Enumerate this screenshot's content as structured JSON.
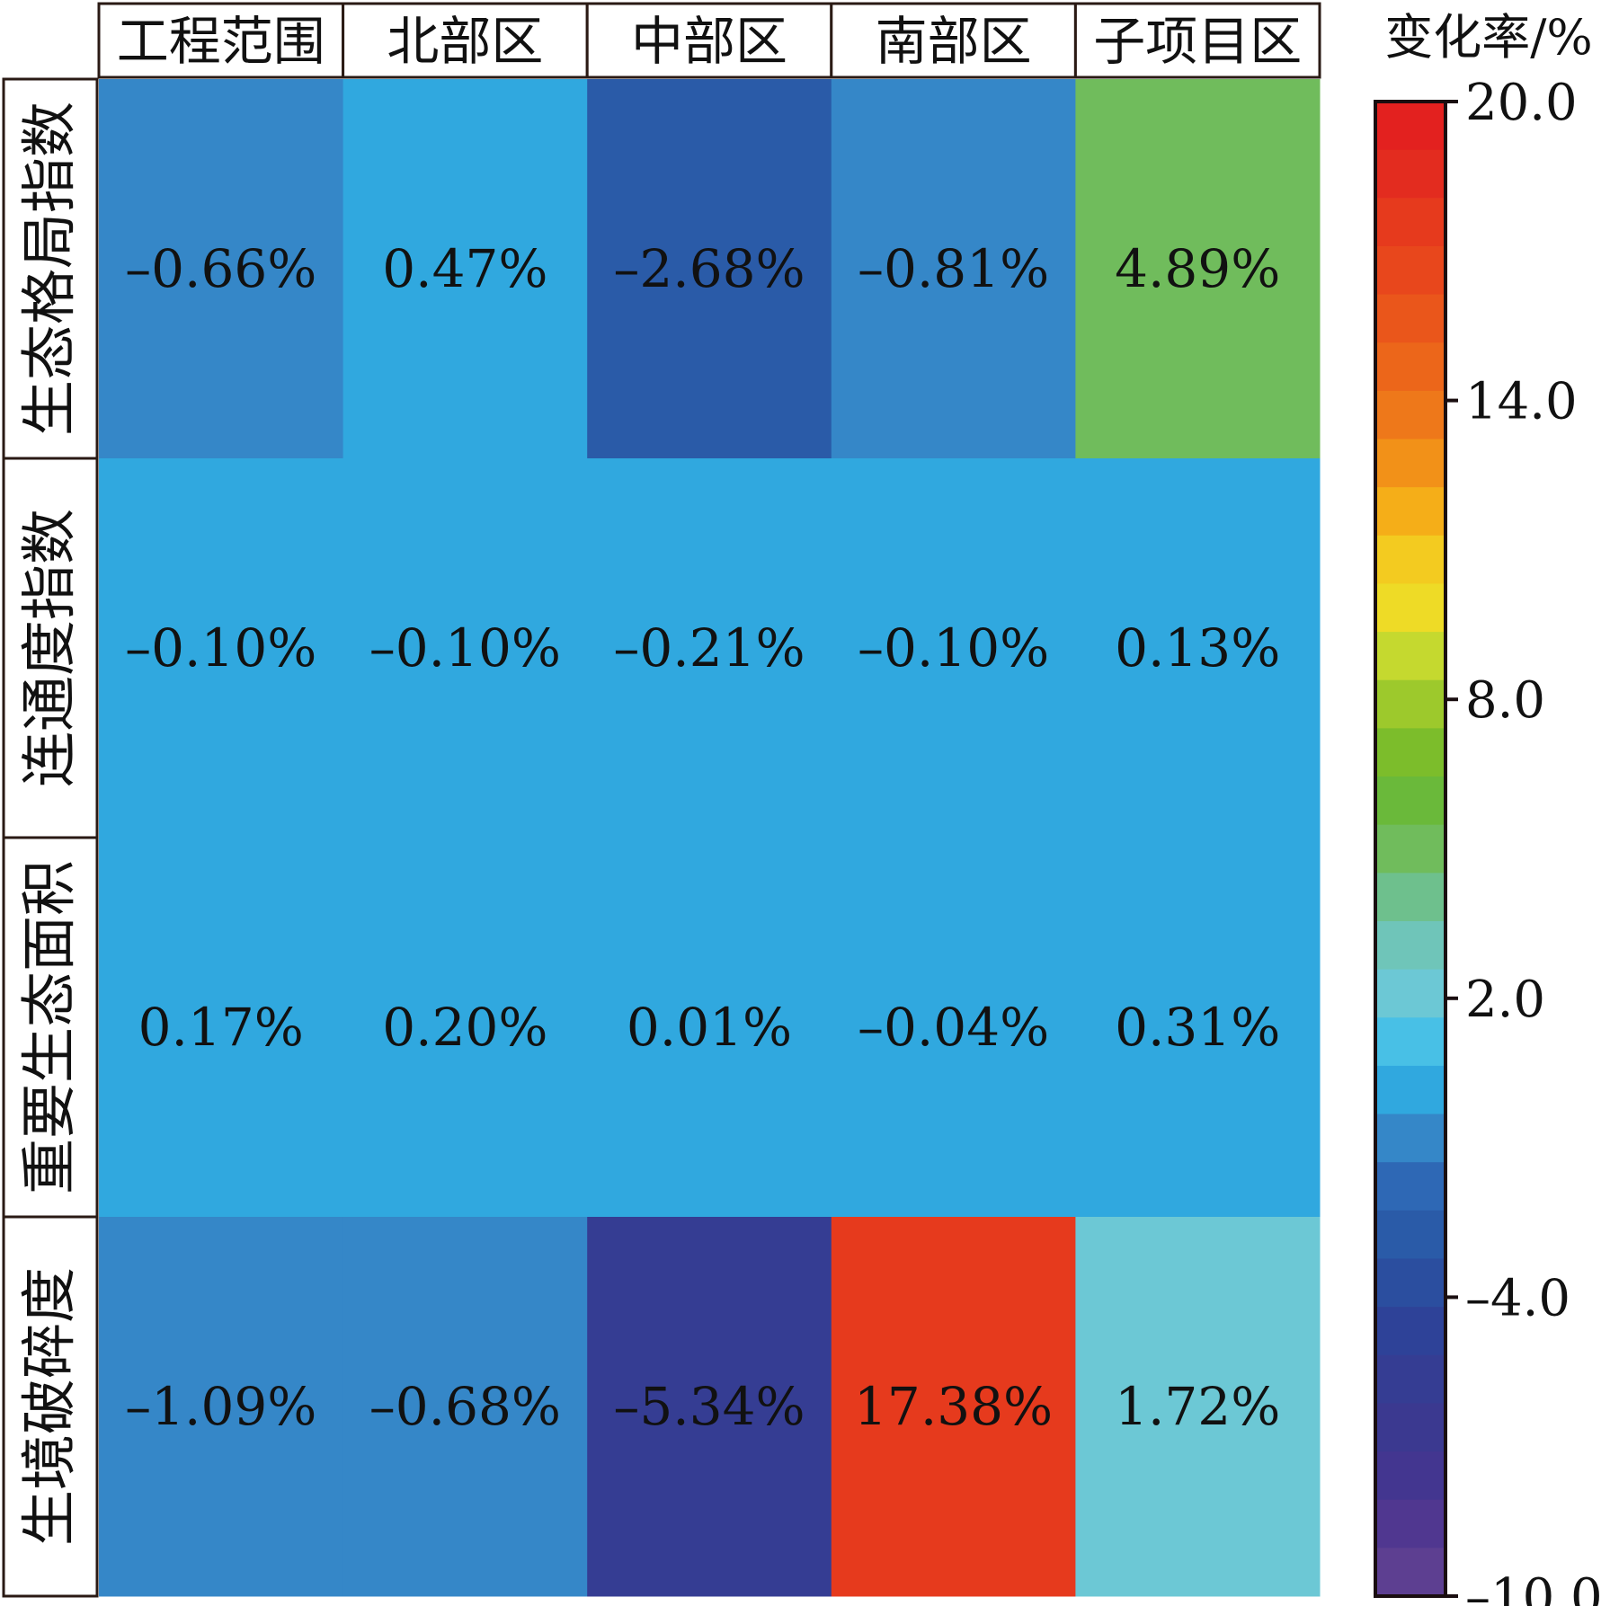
{
  "chart_data": {
    "type": "heatmap",
    "colorbar_title": "变化率/%",
    "columns": [
      "工程范围",
      "北部区",
      "中部区",
      "南部区",
      "子项目区"
    ],
    "rows": [
      "生态格局指数",
      "连通度指数",
      "重要生态面积",
      "生境破碎度"
    ],
    "values": [
      [
        -0.66,
        0.47,
        -2.68,
        -0.81,
        4.89
      ],
      [
        -0.1,
        -0.1,
        -0.21,
        -0.1,
        0.13
      ],
      [
        0.17,
        0.2,
        0.01,
        -0.04,
        0.31
      ],
      [
        -1.09,
        -0.68,
        -5.34,
        17.38,
        1.72
      ]
    ],
    "labels": [
      [
        "–0.66%",
        "0.47%",
        "–2.68%",
        "–0.81%",
        "4.89%"
      ],
      [
        "–0.10%",
        "–0.10%",
        "–0.21%",
        "–0.10%",
        "0.13%"
      ],
      [
        "0.17%",
        "0.20%",
        "0.01%",
        "–0.04%",
        "0.31%"
      ],
      [
        "–1.09%",
        "–0.68%",
        "–5.34%",
        "17.38%",
        "1.72%"
      ]
    ],
    "colorbar": {
      "range": [
        -10.0,
        20.0
      ],
      "ticks": [
        20.0,
        14.0,
        8.0,
        2.0,
        -4.0,
        -10.0
      ],
      "tick_labels": [
        "20.0",
        "14.0",
        "8.0",
        "2.0",
        "–4.0",
        "–10.0"
      ],
      "colors_top_to_bottom": [
        "#e3211f",
        "#e32c1f",
        "#e63a1d",
        "#e8471c",
        "#ea561b",
        "#ec661a",
        "#ee781a",
        "#f29118",
        "#f5ae18",
        "#f3cb20",
        "#eedb26",
        "#c5d92f",
        "#9dc92c",
        "#7cbd2b",
        "#6ab93a",
        "#70bc5c",
        "#6ec08d",
        "#6fc5b9",
        "#6cc8d5",
        "#48c0e6",
        "#30a8df",
        "#3587c8",
        "#2e68b5",
        "#2a5ba8",
        "#2b4e9f",
        "#2e4298",
        "#353d93",
        "#3b3990",
        "#433690",
        "#503790",
        "#5d3f91"
      ]
    }
  }
}
